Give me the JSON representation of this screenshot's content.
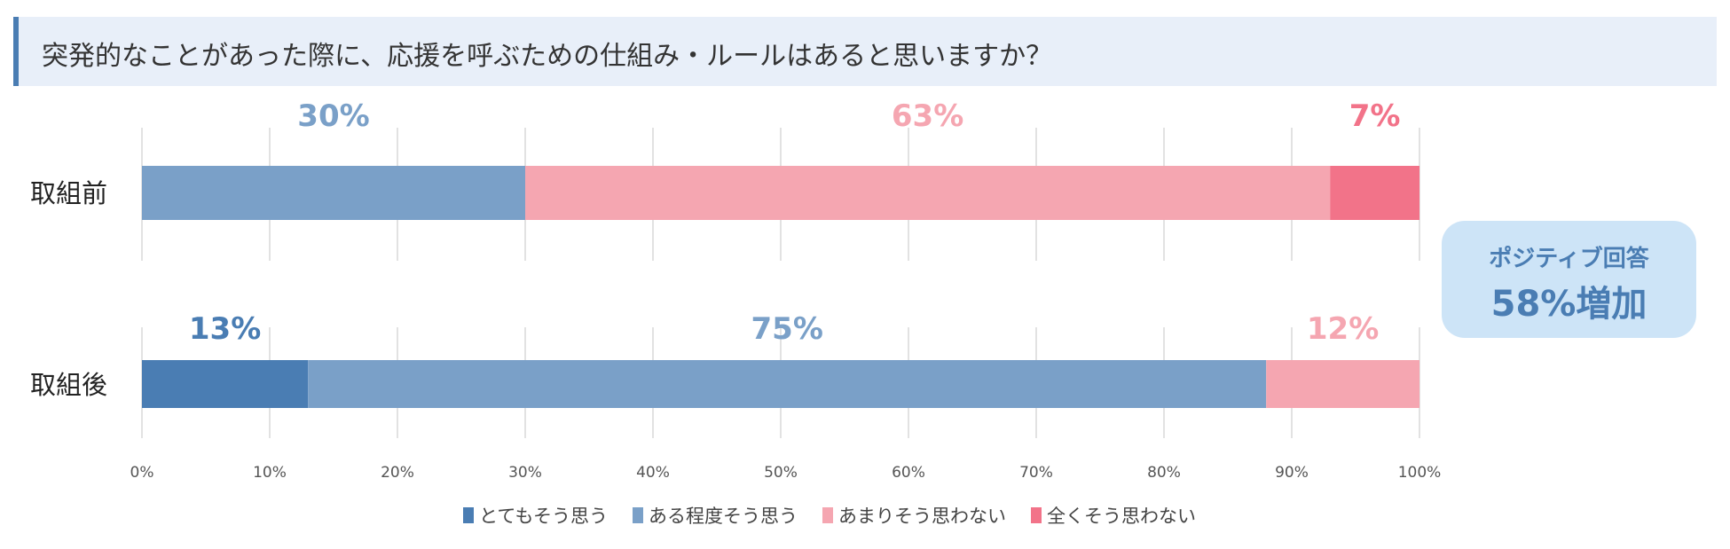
{
  "chart_data": {
    "type": "bar",
    "orientation": "horizontal",
    "stacked": true,
    "title": "突発的なことがあった際に、応援を呼ぶための仕組み・ルールはあると思いますか？",
    "categories": [
      "取組前",
      "取組後"
    ],
    "series": [
      {
        "name": "とてもそう思う",
        "color": "#4a7db3",
        "values": [
          0,
          13
        ]
      },
      {
        "name": "ある程度そう思う",
        "color": "#7aa0c8",
        "values": [
          30,
          75
        ]
      },
      {
        "name": "あまりそう思わない",
        "color": "#f5a6b1",
        "values": [
          63,
          12
        ]
      },
      {
        "name": "全くそう思わない",
        "color": "#f27389",
        "values": [
          7,
          0
        ]
      }
    ],
    "data_labels": [
      [
        {
          "series": 1,
          "text": "30%"
        },
        {
          "series": 2,
          "text": "63%"
        },
        {
          "series": 3,
          "text": "7%"
        }
      ],
      [
        {
          "series": 0,
          "text": "13%"
        },
        {
          "series": 1,
          "text": "75%"
        },
        {
          "series": 2,
          "text": "12%"
        }
      ]
    ],
    "xlim": [
      0,
      100
    ],
    "xticks": [
      "0%",
      "10%",
      "20%",
      "30%",
      "40%",
      "50%",
      "60%",
      "70%",
      "80%",
      "90%",
      "100%"
    ],
    "grid": true,
    "legend": "bottom"
  },
  "callout": {
    "line1": "ポジティブ回答",
    "line2": "58%増加"
  }
}
